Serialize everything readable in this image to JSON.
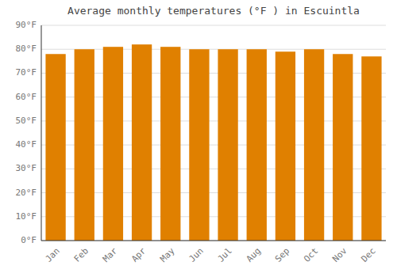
{
  "chart_data": {
    "type": "bar",
    "title": "Average monthly temperatures (°F ) in Escuintla",
    "categories": [
      "Jan",
      "Feb",
      "Mar",
      "Apr",
      "May",
      "Jun",
      "Jul",
      "Aug",
      "Sep",
      "Oct",
      "Nov",
      "Dec"
    ],
    "values": [
      78,
      80,
      81,
      82,
      81,
      80,
      80,
      80,
      79,
      80,
      78,
      77
    ],
    "color": "#E08000",
    "ylim": [
      0,
      90
    ],
    "yticks": [
      {
        "value": 0,
        "label": "0°F"
      },
      {
        "value": 10,
        "label": "10°F"
      },
      {
        "value": 20,
        "label": "20°F"
      },
      {
        "value": 30,
        "label": "30°F"
      },
      {
        "value": 40,
        "label": "40°F"
      },
      {
        "value": 50,
        "label": "50°F"
      },
      {
        "value": 60,
        "label": "60°F"
      },
      {
        "value": 70,
        "label": "70°F"
      },
      {
        "value": 80,
        "label": "80°F"
      },
      {
        "value": 90,
        "label": "90°F"
      }
    ],
    "grid": true
  }
}
